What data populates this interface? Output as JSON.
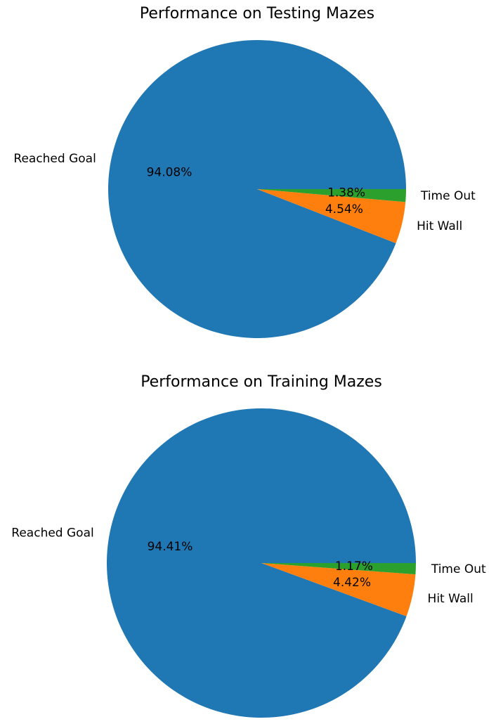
{
  "chart_data": [
    {
      "type": "pie",
      "title": "Performance on Testing Mazes",
      "labels": [
        "Reached Goal",
        "Hit Wall",
        "Time Out"
      ],
      "values": [
        94.08,
        4.54,
        1.38
      ],
      "percent_labels": [
        "94.08%",
        "4.54%",
        "1.38%"
      ],
      "colors": [
        "#1f77b4",
        "#ff7f0e",
        "#2ca02c"
      ]
    },
    {
      "type": "pie",
      "title": "Performance on Training Mazes",
      "labels": [
        "Reached Goal",
        "Hit Wall",
        "Time Out"
      ],
      "values": [
        94.41,
        4.42,
        1.17
      ],
      "percent_labels": [
        "94.41%",
        "4.42%",
        "1.17%"
      ],
      "colors": [
        "#1f77b4",
        "#ff7f0e",
        "#2ca02c"
      ]
    }
  ]
}
